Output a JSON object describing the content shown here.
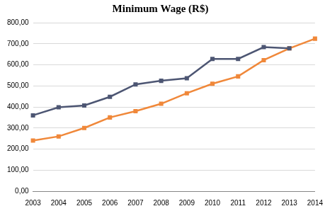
{
  "chart_data": {
    "type": "line",
    "title": "Minimum Wage (R$)",
    "categories": [
      "2003",
      "2004",
      "2005",
      "2006",
      "2007",
      "2008",
      "2009",
      "2010",
      "2011",
      "2012",
      "2013",
      "2014"
    ],
    "series": [
      {
        "color": "#4d5673",
        "marker": "square",
        "values": [
          360,
          398,
          407,
          448,
          507,
          524,
          536,
          628,
          628,
          684,
          678,
          null
        ]
      },
      {
        "color": "#f0883a",
        "marker": "square",
        "values": [
          240,
          260,
          300,
          350,
          380,
          415,
          465,
          510,
          545,
          622,
          678,
          724
        ]
      }
    ],
    "ylim": [
      0,
      800
    ],
    "yticks": [
      {
        "value": 0,
        "label": "0,00"
      },
      {
        "value": 100,
        "label": "100,00"
      },
      {
        "value": 200,
        "label": "200,00"
      },
      {
        "value": 300,
        "label": "300,00"
      },
      {
        "value": 400,
        "label": "400,00"
      },
      {
        "value": 500,
        "label": "500,00"
      },
      {
        "value": 600,
        "label": "600,00"
      },
      {
        "value": 700,
        "label": "700,00"
      },
      {
        "value": 800,
        "label": "800,00"
      }
    ],
    "grid": true
  }
}
